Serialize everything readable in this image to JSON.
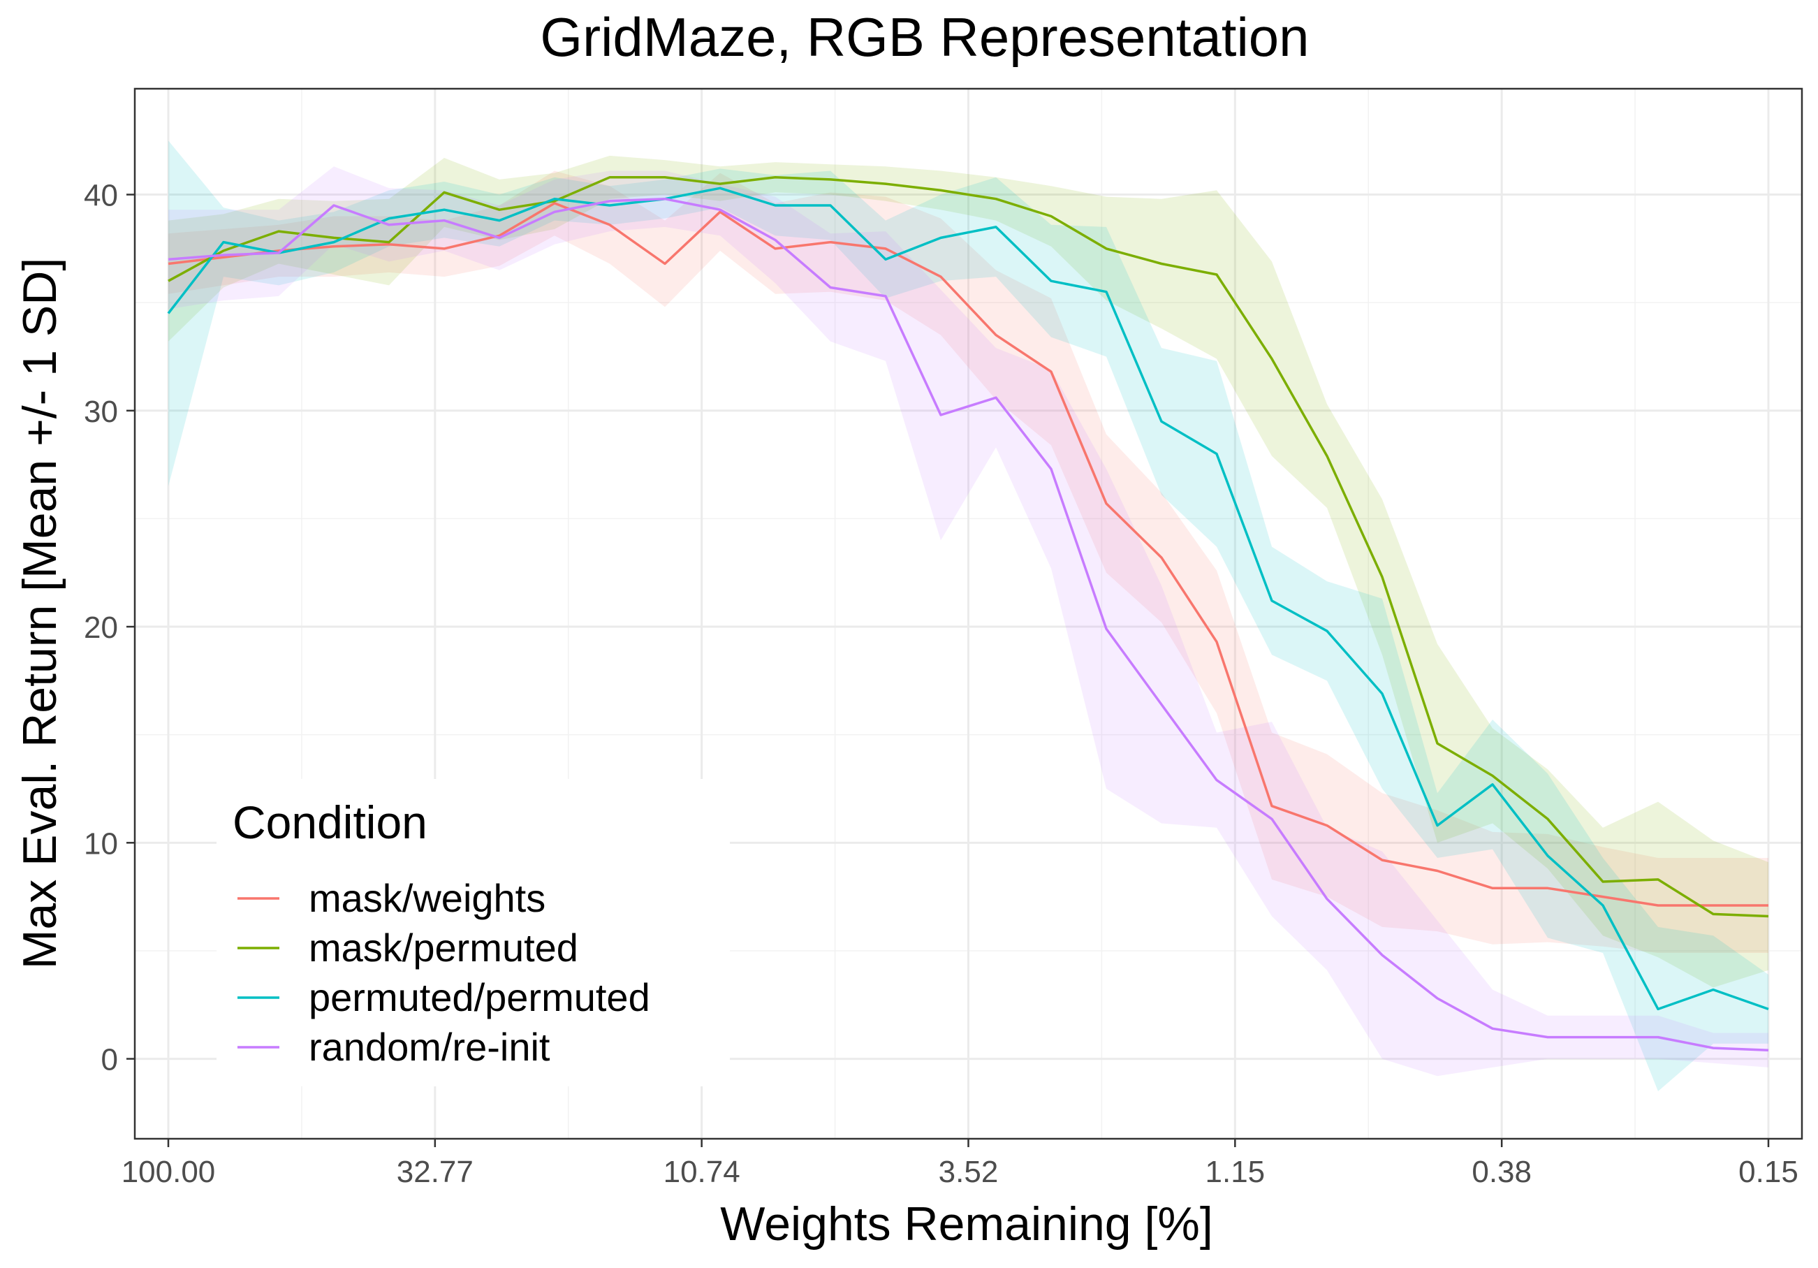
{
  "chart_data": {
    "type": "line",
    "title": "GridMaze, RGB Representation",
    "xlabel": "Weights Remaining [%]",
    "ylabel": "Max Eval. Return [Mean +/- 1 SD]",
    "x_scale": "log",
    "x_reversed": true,
    "ylim": [
      -3.7,
      44.9
    ],
    "x_ticks": [
      "100.00",
      "32.77",
      "10.74",
      "3.52",
      "1.15",
      "0.38",
      "0.15"
    ],
    "y_ticks": [
      "0",
      "10",
      "20",
      "30",
      "40"
    ],
    "y_tick_values": [
      0,
      10,
      20,
      30,
      40
    ],
    "grid": true,
    "legend": {
      "title": "Condition",
      "position": "bottom-left"
    },
    "x": [
      100.0,
      80.0,
      64.0,
      51.2,
      40.96,
      32.77,
      26.21,
      20.97,
      16.78,
      13.42,
      10.74,
      8.59,
      6.87,
      5.5,
      4.4,
      3.52,
      2.81,
      2.25,
      1.8,
      1.44,
      1.15,
      0.92,
      0.74,
      0.59,
      0.47,
      0.38,
      0.3,
      0.24,
      0.19,
      0.15
    ],
    "series": [
      {
        "name": "mask/weights",
        "color": "#F8766D",
        "values": [
          36.8,
          37.1,
          37.4,
          37.6,
          37.7,
          37.5,
          38.1,
          39.6,
          38.6,
          36.8,
          39.2,
          37.5,
          37.8,
          37.5,
          36.2,
          33.5,
          31.8,
          25.7,
          23.2,
          19.3,
          11.7,
          10.8,
          9.2,
          8.7,
          7.9,
          7.9,
          7.5,
          7.1,
          7.1,
          7.1
        ],
        "sd": [
          1.4,
          1.3,
          1.2,
          1.4,
          1.3,
          1.3,
          1.4,
          1.5,
          1.8,
          2.0,
          1.8,
          2.1,
          2.3,
          2.4,
          2.7,
          3.0,
          3.4,
          3.2,
          3.0,
          3.3,
          3.4,
          3.3,
          3.1,
          2.8,
          2.6,
          2.5,
          2.3,
          2.2,
          2.2,
          2.2
        ]
      },
      {
        "name": "mask/permuted",
        "color": "#7CAE00",
        "values": [
          36.0,
          37.4,
          38.3,
          38.0,
          37.8,
          40.1,
          39.3,
          39.7,
          40.8,
          40.8,
          40.5,
          40.8,
          40.7,
          40.5,
          40.2,
          39.8,
          39.0,
          37.5,
          36.8,
          36.3,
          32.4,
          27.9,
          22.3,
          14.6,
          13.1,
          11.1,
          8.2,
          8.3,
          6.7,
          6.6
        ],
        "sd": [
          2.8,
          1.7,
          1.5,
          1.7,
          2.0,
          1.6,
          1.4,
          1.3,
          1.0,
          0.8,
          0.8,
          0.7,
          0.7,
          0.8,
          0.9,
          1.0,
          1.4,
          2.4,
          3.0,
          3.9,
          4.5,
          2.4,
          3.6,
          4.6,
          2.2,
          2.3,
          2.5,
          3.6,
          3.4,
          2.5
        ]
      },
      {
        "name": "permuted/permuted",
        "color": "#00BFC4",
        "values": [
          34.5,
          37.8,
          37.3,
          37.8,
          38.9,
          39.3,
          38.8,
          39.8,
          39.5,
          39.8,
          40.3,
          39.5,
          39.5,
          37.0,
          38.0,
          38.5,
          36.0,
          35.5,
          29.5,
          28.0,
          21.2,
          19.8,
          16.9,
          10.8,
          12.7,
          9.4,
          7.1,
          2.3,
          3.2,
          2.3
        ],
        "sd": [
          8.0,
          1.6,
          1.5,
          1.4,
          1.3,
          1.3,
          1.2,
          1.0,
          0.9,
          0.9,
          0.9,
          1.4,
          1.6,
          1.8,
          2.0,
          2.3,
          2.6,
          3.0,
          3.4,
          4.3,
          2.5,
          2.3,
          4.4,
          1.5,
          3.0,
          3.8,
          2.2,
          3.8,
          2.5,
          1.6
        ]
      },
      {
        "name": "random/re-init",
        "color": "#C77CFF",
        "values": [
          37.0,
          37.2,
          37.3,
          39.5,
          38.6,
          38.8,
          38.0,
          39.2,
          39.7,
          39.8,
          39.3,
          37.9,
          35.7,
          35.3,
          29.8,
          30.6,
          27.3,
          19.9,
          16.4,
          12.9,
          11.1,
          7.4,
          4.8,
          2.8,
          1.4,
          1.0,
          1.0,
          1.0,
          0.5,
          0.4
        ],
        "sd": [
          2.3,
          2.1,
          2.0,
          1.8,
          1.7,
          1.4,
          1.5,
          1.5,
          1.4,
          1.3,
          1.2,
          2.0,
          2.5,
          3.0,
          5.8,
          2.3,
          4.6,
          7.4,
          5.5,
          2.2,
          4.5,
          3.3,
          4.8,
          3.6,
          1.8,
          1.0,
          1.0,
          1.0,
          0.7,
          0.8
        ]
      }
    ]
  }
}
